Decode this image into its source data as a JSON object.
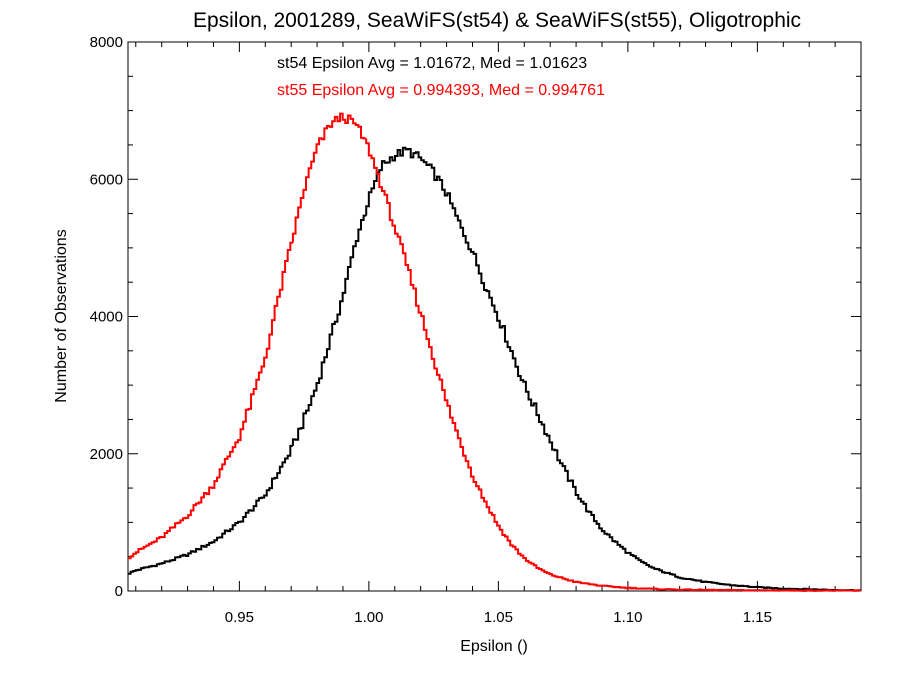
{
  "chart_data": {
    "type": "line",
    "title": "Epsilon, 2001289, SeaWiFS(st54) & SeaWiFS(st55), Oligotrophic",
    "xlabel": "Epsilon ()",
    "ylabel": "Number of Observations",
    "xlim": [
      0.907,
      1.19
    ],
    "ylim": [
      0,
      8000
    ],
    "xticks": [
      0.95,
      1.0,
      1.05,
      1.1,
      1.15
    ],
    "xtick_labels": [
      "0.95",
      "1.00",
      "1.05",
      "1.10",
      "1.15"
    ],
    "yticks": [
      0,
      2000,
      4000,
      6000,
      8000
    ],
    "ytick_labels": [
      "0",
      "2000",
      "4000",
      "6000",
      "8000"
    ],
    "grid": false,
    "line_style": "step",
    "annotations": [
      {
        "text": "st54 Epsilon Avg = 1.01672, Med = 1.01623",
        "color": "#000000"
      },
      {
        "text": "st55 Epsilon Avg = 0.994393, Med = 0.994761",
        "color": "#ff0000"
      }
    ],
    "series": [
      {
        "color": "#000000",
        "x": [
          0.907,
          0.91,
          0.92,
          0.93,
          0.94,
          0.95,
          0.96,
          0.97,
          0.975,
          0.98,
          0.985,
          0.99,
          0.995,
          1.0,
          1.005,
          1.01,
          1.015,
          1.02,
          1.025,
          1.03,
          1.035,
          1.04,
          1.045,
          1.05,
          1.055,
          1.06,
          1.065,
          1.07,
          1.075,
          1.08,
          1.085,
          1.09,
          1.095,
          1.1,
          1.105,
          1.11,
          1.12,
          1.13,
          1.14,
          1.15,
          1.16,
          1.17,
          1.18,
          1.19
        ],
        "values": [
          250,
          300,
          400,
          530,
          720,
          1000,
          1400,
          2050,
          2500,
          3000,
          3650,
          4300,
          5100,
          5700,
          6200,
          6350,
          6420,
          6300,
          6100,
          5800,
          5350,
          4950,
          4450,
          4000,
          3500,
          3000,
          2600,
          2200,
          1800,
          1450,
          1150,
          900,
          720,
          560,
          430,
          330,
          200,
          130,
          85,
          55,
          35,
          25,
          15,
          10
        ]
      },
      {
        "color": "#ff0000",
        "x": [
          0.907,
          0.91,
          0.92,
          0.93,
          0.94,
          0.95,
          0.955,
          0.96,
          0.965,
          0.97,
          0.975,
          0.98,
          0.985,
          0.99,
          0.995,
          1.0,
          1.005,
          1.01,
          1.015,
          1.02,
          1.025,
          1.03,
          1.035,
          1.04,
          1.045,
          1.05,
          1.055,
          1.06,
          1.065,
          1.07,
          1.08,
          1.09,
          1.1,
          1.11,
          1.12,
          1.13,
          1.15,
          1.19
        ],
        "values": [
          480,
          560,
          780,
          1100,
          1550,
          2250,
          2800,
          3400,
          4250,
          5050,
          5850,
          6450,
          6800,
          6920,
          6800,
          6450,
          5900,
          5300,
          4700,
          4050,
          3400,
          2750,
          2200,
          1700,
          1300,
          950,
          680,
          480,
          340,
          240,
          130,
          75,
          45,
          30,
          20,
          15,
          10,
          5
        ]
      }
    ]
  }
}
